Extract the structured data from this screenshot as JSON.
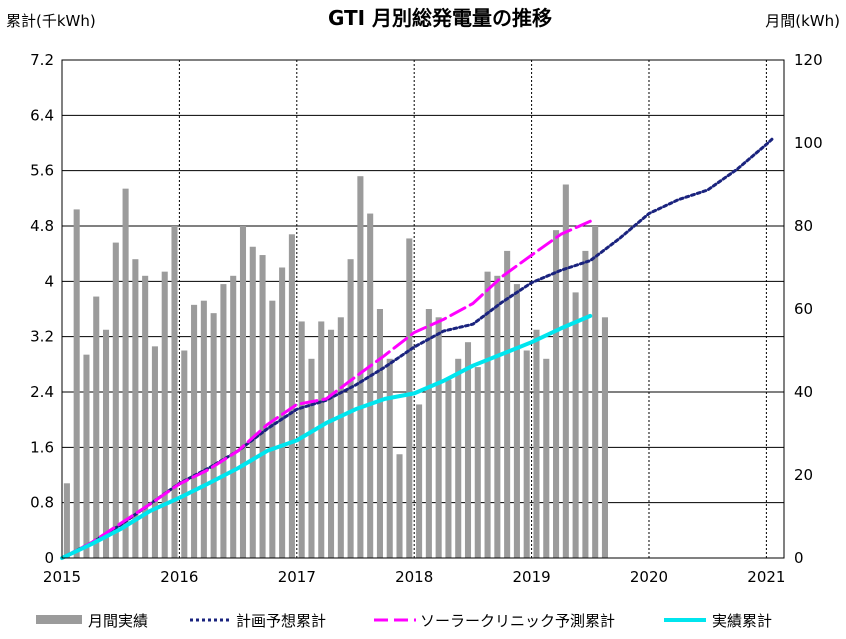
{
  "chart_data": {
    "type": "bar",
    "title": "GTI 月別総発電量の推移",
    "ylabel_left": "累計(千kWh)",
    "ylabel_right": "月間(kWh)",
    "xlabel": "",
    "x_ticks": [
      "2015",
      "2016",
      "2017",
      "2018",
      "2019",
      "2020",
      "2021"
    ],
    "y_left_ticks": [
      "0",
      "0.8",
      "1.6",
      "2.4",
      "3.2",
      "4",
      "4.8",
      "5.6",
      "6.4",
      "7.2"
    ],
    "y_right_ticks": [
      "0",
      "20",
      "40",
      "60",
      "80",
      "100",
      "120"
    ],
    "ylim_left": [
      0,
      7.2
    ],
    "ylim_right": [
      0,
      120
    ],
    "xlim": [
      2015,
      2021.15
    ],
    "grid": true,
    "legend_position": "bottom",
    "monthly": {
      "name": "月間実績",
      "axis": "right",
      "color": "#9b9b9b",
      "start": 2015.0,
      "values": [
        18,
        84,
        49,
        63,
        55,
        76,
        89,
        72,
        68,
        51,
        69,
        80,
        50,
        61,
        62,
        59,
        66,
        68,
        80,
        75,
        73,
        62,
        70,
        78,
        57,
        48,
        57,
        55,
        58,
        72,
        92,
        83,
        60,
        48,
        25,
        77,
        37,
        60,
        58,
        43,
        48,
        52,
        46,
        69,
        68,
        74,
        66,
        50,
        55,
        48,
        79,
        90,
        64,
        74,
        80,
        58
      ]
    },
    "series": [
      {
        "name": "計画予想累計",
        "axis": "left",
        "color": "#1a237e",
        "style": "dotted",
        "x": [
          2015.0,
          2015.25,
          2015.5,
          2015.75,
          2016.0,
          2016.25,
          2016.5,
          2016.75,
          2017.0,
          2017.25,
          2017.5,
          2017.75,
          2018.0,
          2018.25,
          2018.5,
          2018.75,
          2019.0,
          2019.25,
          2019.5,
          2019.75,
          2020.0,
          2020.25,
          2020.5,
          2020.75,
          2021.0,
          2021.05
        ],
        "values": [
          0,
          0.22,
          0.48,
          0.78,
          1.08,
          1.3,
          1.55,
          1.87,
          2.15,
          2.28,
          2.5,
          2.76,
          3.05,
          3.28,
          3.38,
          3.7,
          3.98,
          4.16,
          4.3,
          4.62,
          4.98,
          5.18,
          5.32,
          5.62,
          5.98,
          6.06
        ]
      },
      {
        "name": "ソーラークリニック予測累計",
        "axis": "left",
        "color": "#ff00ff",
        "style": "dashed",
        "x": [
          2015.0,
          2015.25,
          2015.5,
          2015.75,
          2016.0,
          2016.25,
          2016.5,
          2016.75,
          2017.0,
          2017.25,
          2017.5,
          2017.75,
          2018.0,
          2018.25,
          2018.5,
          2018.75,
          2019.0,
          2019.25,
          2019.5
        ],
        "values": [
          0,
          0.22,
          0.5,
          0.78,
          1.07,
          1.28,
          1.55,
          1.93,
          2.22,
          2.3,
          2.62,
          2.93,
          3.26,
          3.45,
          3.68,
          4.07,
          4.38,
          4.68,
          4.87
        ]
      },
      {
        "name": "実績累計",
        "axis": "left",
        "color": "#00e5ee",
        "style": "solid",
        "x": [
          2015.0,
          2015.25,
          2015.5,
          2015.75,
          2016.0,
          2016.25,
          2016.5,
          2016.75,
          2017.0,
          2017.25,
          2017.5,
          2017.75,
          2018.0,
          2018.25,
          2018.5,
          2018.75,
          2019.0,
          2019.25,
          2019.5
        ],
        "values": [
          0,
          0.2,
          0.42,
          0.68,
          0.87,
          1.08,
          1.3,
          1.55,
          1.7,
          1.95,
          2.15,
          2.3,
          2.38,
          2.56,
          2.78,
          2.95,
          3.12,
          3.32,
          3.5
        ]
      }
    ]
  },
  "legend": {
    "items": [
      {
        "label": "月間実績"
      },
      {
        "label": "計画予想累計"
      },
      {
        "label": "ソーラークリニック予測累計"
      },
      {
        "label": "実績累計"
      }
    ]
  }
}
